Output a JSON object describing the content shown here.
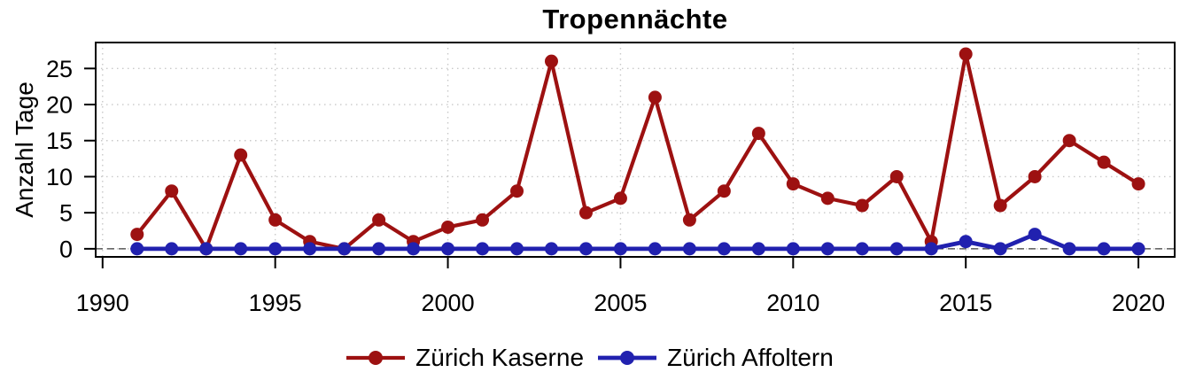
{
  "chart_data": {
    "type": "line",
    "title": "Tropennächte",
    "ylabel": "Anzahl Tage",
    "xlabel": "",
    "x": [
      1991,
      1992,
      1993,
      1994,
      1995,
      1996,
      1997,
      1998,
      1999,
      2000,
      2001,
      2002,
      2003,
      2004,
      2005,
      2006,
      2007,
      2008,
      2009,
      2010,
      2011,
      2012,
      2013,
      2014,
      2015,
      2016,
      2017,
      2018,
      2019,
      2020
    ],
    "series": [
      {
        "name": "Zürich Kaserne",
        "color": "#9d1111",
        "values": [
          2,
          8,
          0,
          13,
          4,
          1,
          0,
          4,
          1,
          3,
          4,
          8,
          26,
          5,
          7,
          21,
          4,
          8,
          16,
          9,
          7,
          6,
          10,
          1,
          27,
          6,
          10,
          15,
          12,
          9
        ]
      },
      {
        "name": "Zürich Affoltern",
        "color": "#2121af",
        "values": [
          0,
          0,
          0,
          0,
          0,
          0,
          0,
          0,
          0,
          0,
          0,
          0,
          0,
          0,
          0,
          0,
          0,
          0,
          0,
          0,
          0,
          0,
          0,
          0,
          1,
          0,
          2,
          0,
          0,
          0
        ]
      }
    ],
    "xticks": [
      1990,
      1995,
      2000,
      2005,
      2010,
      2015,
      2020
    ],
    "yticks": [
      0,
      5,
      10,
      15,
      20,
      25
    ],
    "xlim": [
      1989.8,
      2021.05
    ],
    "ylim": [
      -1.12,
      28.6
    ],
    "grid": true,
    "zero_reference_line": 0,
    "legend_position": "bottom"
  }
}
